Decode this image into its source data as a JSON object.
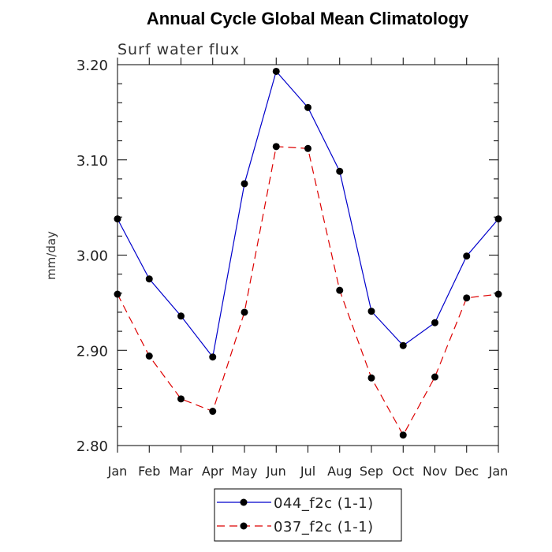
{
  "chart_data": {
    "type": "line",
    "title": "Annual Cycle Global Mean Climatology",
    "subtitle": "Surf water flux",
    "ylabel": "mm/day",
    "xlabel": "",
    "categories": [
      "Jan",
      "Feb",
      "Mar",
      "Apr",
      "May",
      "Jun",
      "Jul",
      "Aug",
      "Sep",
      "Oct",
      "Nov",
      "Dec",
      "Jan"
    ],
    "ylim": [
      2.8,
      3.2
    ],
    "yticks": [
      2.8,
      2.9,
      3.0,
      3.1,
      3.2
    ],
    "ytick_labels": [
      "2.80",
      "2.90",
      "3.00",
      "3.10",
      "3.20"
    ],
    "grid": false,
    "legend_position": "bottom",
    "series": [
      {
        "name": "044_f2c (1-1)",
        "color": "#0000cc",
        "dash": "solid",
        "values": [
          3.038,
          2.975,
          2.936,
          2.893,
          3.075,
          3.193,
          3.155,
          3.088,
          2.941,
          2.905,
          2.929,
          2.999,
          3.038
        ]
      },
      {
        "name": "037_f2c (1-1)",
        "color": "#dd0000",
        "dash": "dashed",
        "values": [
          2.959,
          2.894,
          2.849,
          2.836,
          2.94,
          3.114,
          3.112,
          2.963,
          2.871,
          2.811,
          2.872,
          2.955,
          2.959
        ]
      }
    ]
  }
}
